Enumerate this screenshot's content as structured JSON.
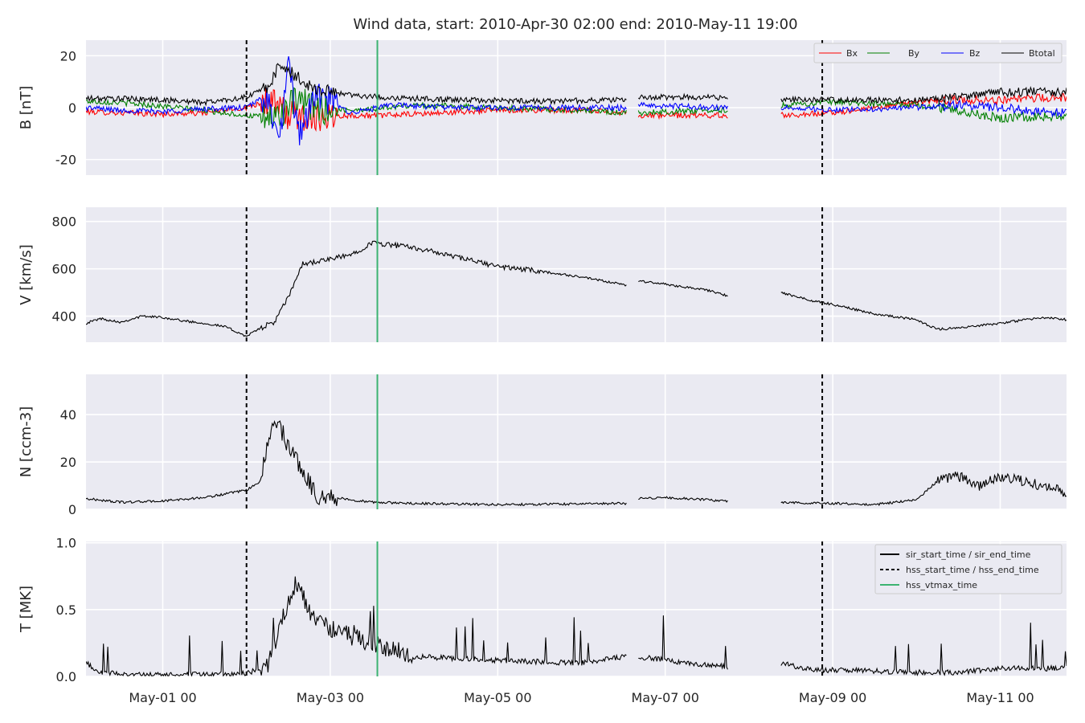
{
  "chart_data": {
    "type": "line",
    "title": "Wind data, start: 2010-Apr-30 02:00  end: 2010-May-11 19:00",
    "time_range": [
      "2010-04-30T02:00",
      "2010-05-11T19:00"
    ],
    "x_tick_labels": [
      {
        "time": "2010-05-01T00:00",
        "label": "May-01 00"
      },
      {
        "time": "2010-05-03T00:00",
        "label": "May-03 00"
      },
      {
        "time": "2010-05-05T00:00",
        "label": "May-05 00"
      },
      {
        "time": "2010-05-07T00:00",
        "label": "May-07 00"
      },
      {
        "time": "2010-05-09T00:00",
        "label": "May-09 00"
      },
      {
        "time": "2010-05-11T00:00",
        "label": "May-11 00"
      }
    ],
    "grid": true,
    "data_gaps": [
      [
        "2010-05-06T13:00",
        "2010-05-06T16:00"
      ],
      [
        "2010-05-07T18:00",
        "2010-05-08T09:00"
      ]
    ],
    "event_lines": [
      {
        "kind": "hss_start_time / hss_end_time",
        "time": "2010-05-02T00:00",
        "style": "dashed",
        "color": "#000000"
      },
      {
        "kind": "hss_vtmax_time",
        "time": "2010-05-03T13:30",
        "style": "solid",
        "color": "#3cb371"
      },
      {
        "kind": "hss_start_time / hss_end_time",
        "time": "2010-05-08T21:00",
        "style": "dashed",
        "color": "#000000"
      }
    ],
    "panels": [
      {
        "ylabel": "B [nT]",
        "ylim": [
          -26,
          26
        ],
        "yticks": [
          -20,
          0,
          20
        ],
        "legend": "top-right",
        "series": [
          {
            "name": "Bx",
            "color": "#ff0000",
            "points": [
              [
                "2010-04-30T02:00",
                -1.5
              ],
              [
                "2010-04-30T12:00",
                -2
              ],
              [
                "2010-05-01T00:00",
                -2.5
              ],
              [
                "2010-05-01T12:00",
                -2
              ],
              [
                "2010-05-02T00:00",
                0
              ],
              [
                "2010-05-02T06:00",
                3
              ],
              [
                "2010-05-02T12:00",
                -3
              ],
              [
                "2010-05-02T20:00",
                -3
              ],
              [
                "2010-05-03T06:00",
                -3
              ],
              [
                "2010-05-03T14:00",
                -3
              ],
              [
                "2010-05-04T00:00",
                -2.5
              ],
              [
                "2010-05-05T00:00",
                -1
              ],
              [
                "2010-05-06T00:00",
                -1
              ],
              [
                "2010-05-06T13:00",
                -2
              ],
              [
                "2010-05-06T16:00",
                -3
              ],
              [
                "2010-05-07T12:00",
                -3
              ],
              [
                "2010-05-07T18:00",
                -3
              ],
              [
                "2010-05-08T09:00",
                -3
              ],
              [
                "2010-05-09T00:00",
                -2
              ],
              [
                "2010-05-09T12:00",
                0
              ],
              [
                "2010-05-10T00:00",
                2
              ],
              [
                "2010-05-10T12:00",
                3
              ],
              [
                "2010-05-11T00:00",
                3
              ],
              [
                "2010-05-11T19:00",
                4
              ]
            ]
          },
          {
            "name": "By",
            "color": "#008000",
            "points": [
              [
                "2010-04-30T02:00",
                2.5
              ],
              [
                "2010-04-30T12:00",
                2
              ],
              [
                "2010-05-01T00:00",
                0.5
              ],
              [
                "2010-05-01T12:00",
                -1
              ],
              [
                "2010-05-02T00:00",
                -3
              ],
              [
                "2010-05-02T08:00",
                -4
              ],
              [
                "2010-05-02T14:00",
                2
              ],
              [
                "2010-05-03T00:00",
                -1
              ],
              [
                "2010-05-03T12:00",
                -0.5
              ],
              [
                "2010-05-04T00:00",
                1
              ],
              [
                "2010-05-05T00:00",
                0
              ],
              [
                "2010-05-06T00:00",
                -1
              ],
              [
                "2010-05-06T13:00",
                -2
              ],
              [
                "2010-05-06T16:00",
                -2
              ],
              [
                "2010-05-07T12:00",
                -1
              ],
              [
                "2010-05-07T18:00",
                -1
              ],
              [
                "2010-05-08T09:00",
                1
              ],
              [
                "2010-05-09T00:00",
                2
              ],
              [
                "2010-05-10T00:00",
                1
              ],
              [
                "2010-05-10T12:00",
                -1
              ],
              [
                "2010-05-11T00:00",
                -4
              ],
              [
                "2010-05-11T19:00",
                -3
              ]
            ]
          },
          {
            "name": "Bz",
            "color": "#0000ff",
            "points": [
              [
                "2010-04-30T02:00",
                0
              ],
              [
                "2010-04-30T12:00",
                -1
              ],
              [
                "2010-05-01T00:00",
                -1.5
              ],
              [
                "2010-05-01T12:00",
                -0.5
              ],
              [
                "2010-05-02T00:00",
                0
              ],
              [
                "2010-05-02T06:00",
                5
              ],
              [
                "2010-05-02T09:00",
                -15
              ],
              [
                "2010-05-02T12:00",
                15
              ],
              [
                "2010-05-02T15:00",
                -10
              ],
              [
                "2010-05-02T20:00",
                5
              ],
              [
                "2010-05-03T06:00",
                -2
              ],
              [
                "2010-05-03T18:00",
                1
              ],
              [
                "2010-05-04T12:00",
                0
              ],
              [
                "2010-05-05T12:00",
                0
              ],
              [
                "2010-05-06T13:00",
                0
              ],
              [
                "2010-05-06T16:00",
                1
              ],
              [
                "2010-05-07T18:00",
                0
              ],
              [
                "2010-05-08T09:00",
                0
              ],
              [
                "2010-05-09T00:00",
                -1
              ],
              [
                "2010-05-10T00:00",
                0
              ],
              [
                "2010-05-10T12:00",
                1
              ],
              [
                "2010-05-11T00:00",
                0
              ],
              [
                "2010-05-11T19:00",
                -2
              ]
            ]
          },
          {
            "name": "Btotal",
            "color": "#000000",
            "points": [
              [
                "2010-04-30T02:00",
                3.5
              ],
              [
                "2010-04-30T12:00",
                3.5
              ],
              [
                "2010-05-01T00:00",
                3
              ],
              [
                "2010-05-01T12:00",
                2
              ],
              [
                "2010-05-02T00:00",
                4
              ],
              [
                "2010-05-02T06:00",
                8
              ],
              [
                "2010-05-02T10:00",
                17
              ],
              [
                "2010-05-02T14:00",
                12
              ],
              [
                "2010-05-02T20:00",
                7
              ],
              [
                "2010-05-03T06:00",
                5
              ],
              [
                "2010-05-03T14:00",
                4
              ],
              [
                "2010-05-04T12:00",
                3
              ],
              [
                "2010-05-05T12:00",
                2.5
              ],
              [
                "2010-05-06T13:00",
                3
              ],
              [
                "2010-05-06T16:00",
                4
              ],
              [
                "2010-05-07T18:00",
                4
              ],
              [
                "2010-05-08T09:00",
                3
              ],
              [
                "2010-05-09T00:00",
                3
              ],
              [
                "2010-05-10T00:00",
                3
              ],
              [
                "2010-05-10T12:00",
                4
              ],
              [
                "2010-05-11T00:00",
                6
              ],
              [
                "2010-05-11T19:00",
                6
              ]
            ]
          }
        ]
      },
      {
        "ylabel": "V [km/s]",
        "ylim": [
          290,
          860
        ],
        "yticks": [
          400,
          600,
          800
        ],
        "series": [
          {
            "name": "V",
            "color": "#000000",
            "points": [
              [
                "2010-04-30T02:00",
                370
              ],
              [
                "2010-04-30T06:00",
                390
              ],
              [
                "2010-04-30T12:00",
                375
              ],
              [
                "2010-04-30T18:00",
                400
              ],
              [
                "2010-05-01T00:00",
                395
              ],
              [
                "2010-05-01T06:00",
                380
              ],
              [
                "2010-05-01T12:00",
                370
              ],
              [
                "2010-05-01T18:00",
                355
              ],
              [
                "2010-05-02T00:00",
                315
              ],
              [
                "2010-05-02T04:00",
                350
              ],
              [
                "2010-05-02T08:00",
                375
              ],
              [
                "2010-05-02T12:00",
                480
              ],
              [
                "2010-05-02T16:00",
                620
              ],
              [
                "2010-05-03T00:00",
                640
              ],
              [
                "2010-05-03T06:00",
                660
              ],
              [
                "2010-05-03T12:00",
                710
              ],
              [
                "2010-05-03T18:00",
                700
              ],
              [
                "2010-05-04T00:00",
                690
              ],
              [
                "2010-05-04T12:00",
                650
              ],
              [
                "2010-05-05T00:00",
                610
              ],
              [
                "2010-05-05T12:00",
                590
              ],
              [
                "2010-05-06T00:00",
                565
              ],
              [
                "2010-05-06T13:00",
                530
              ],
              [
                "2010-05-06T16:00",
                550
              ],
              [
                "2010-05-07T00:00",
                535
              ],
              [
                "2010-05-07T12:00",
                510
              ],
              [
                "2010-05-07T18:00",
                485
              ],
              [
                "2010-05-08T09:00",
                500
              ],
              [
                "2010-05-08T18:00",
                465
              ],
              [
                "2010-05-09T00:00",
                450
              ],
              [
                "2010-05-09T12:00",
                410
              ],
              [
                "2010-05-10T00:00",
                385
              ],
              [
                "2010-05-10T06:00",
                345
              ],
              [
                "2010-05-10T12:00",
                350
              ],
              [
                "2010-05-11T00:00",
                370
              ],
              [
                "2010-05-11T12:00",
                395
              ],
              [
                "2010-05-11T19:00",
                385
              ]
            ]
          }
        ]
      },
      {
        "ylabel": "N [ccm-3]",
        "ylim": [
          0,
          57
        ],
        "yticks": [
          0,
          20,
          40
        ],
        "series": [
          {
            "name": "N",
            "color": "#000000",
            "points": [
              [
                "2010-04-30T02:00",
                4.5
              ],
              [
                "2010-04-30T12:00",
                3
              ],
              [
                "2010-05-01T00:00",
                3.5
              ],
              [
                "2010-05-01T12:00",
                5
              ],
              [
                "2010-05-02T00:00",
                8
              ],
              [
                "2010-05-02T04:00",
                12
              ],
              [
                "2010-05-02T08:00",
                40
              ],
              [
                "2010-05-02T11:00",
                30
              ],
              [
                "2010-05-02T14:00",
                22
              ],
              [
                "2010-05-02T20:00",
                6
              ],
              [
                "2010-05-03T06:00",
                4
              ],
              [
                "2010-05-03T12:00",
                3
              ],
              [
                "2010-05-04T00:00",
                2.5
              ],
              [
                "2010-05-05T00:00",
                2
              ],
              [
                "2010-05-06T13:00",
                2.5
              ],
              [
                "2010-05-06T16:00",
                4.5
              ],
              [
                "2010-05-07T00:00",
                5
              ],
              [
                "2010-05-07T18:00",
                3.5
              ],
              [
                "2010-05-08T09:00",
                3
              ],
              [
                "2010-05-09T00:00",
                2.5
              ],
              [
                "2010-05-09T12:00",
                2
              ],
              [
                "2010-05-10T00:00",
                4
              ],
              [
                "2010-05-10T06:00",
                12
              ],
              [
                "2010-05-10T12:00",
                14
              ],
              [
                "2010-05-10T18:00",
                10
              ],
              [
                "2010-05-11T00:00",
                14
              ],
              [
                "2010-05-11T12:00",
                10
              ],
              [
                "2010-05-11T19:00",
                7
              ]
            ]
          }
        ]
      },
      {
        "ylabel": "T [MK]",
        "ylim": [
          0,
          1.01
        ],
        "yticks": [
          0.0,
          0.5,
          1.0
        ],
        "legend": "top-right",
        "legend_entries": [
          {
            "label": "sir_start_time / sir_end_time",
            "style": "solid",
            "color": "#000000"
          },
          {
            "label": "hss_start_time / hss_end_time",
            "style": "dashed",
            "color": "#000000"
          },
          {
            "label": "hss_vtmax_time",
            "style": "solid",
            "color": "#3cb371"
          }
        ],
        "series": [
          {
            "name": "T",
            "color": "#000000",
            "points": [
              [
                "2010-04-30T02:00",
                0.1
              ],
              [
                "2010-04-30T06:00",
                0.03
              ],
              [
                "2010-04-30T18:00",
                0.01
              ],
              [
                "2010-05-01T12:00",
                0.015
              ],
              [
                "2010-05-02T00:00",
                0.02
              ],
              [
                "2010-05-02T06:00",
                0.08
              ],
              [
                "2010-05-02T10:00",
                0.4
              ],
              [
                "2010-05-02T14:00",
                0.7
              ],
              [
                "2010-05-02T20:00",
                0.4
              ],
              [
                "2010-05-03T06:00",
                0.3
              ],
              [
                "2010-05-03T12:00",
                0.25
              ],
              [
                "2010-05-03T18:00",
                0.2
              ],
              [
                "2010-05-04T00:00",
                0.15
              ],
              [
                "2010-05-05T00:00",
                0.12
              ],
              [
                "2010-05-06T00:00",
                0.1
              ],
              [
                "2010-05-06T13:00",
                0.15
              ],
              [
                "2010-05-06T16:00",
                0.15
              ],
              [
                "2010-05-07T00:00",
                0.12
              ],
              [
                "2010-05-07T18:00",
                0.07
              ],
              [
                "2010-05-08T09:00",
                0.1
              ],
              [
                "2010-05-08T18:00",
                0.05
              ],
              [
                "2010-05-09T12:00",
                0.04
              ],
              [
                "2010-05-10T00:00",
                0.03
              ],
              [
                "2010-05-10T12:00",
                0.03
              ],
              [
                "2010-05-11T00:00",
                0.06
              ],
              [
                "2010-05-11T19:00",
                0.06
              ]
            ]
          }
        ]
      }
    ]
  }
}
